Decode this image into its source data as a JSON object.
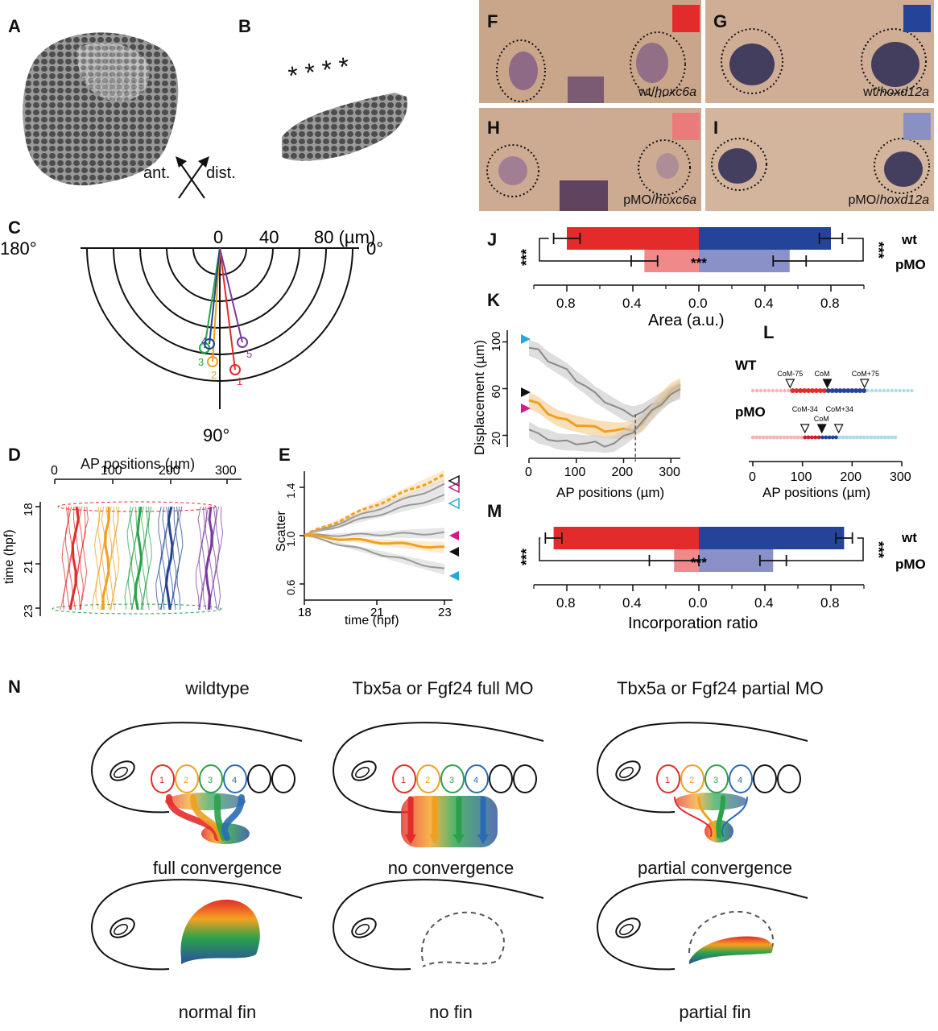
{
  "panel_labels": {
    "A": "A",
    "B": "B",
    "C": "C",
    "D": "D",
    "E": "E",
    "F": "F",
    "G": "G",
    "H": "H",
    "I": "I",
    "J": "J",
    "K": "K",
    "L": "L",
    "M": "M",
    "N": "N"
  },
  "panel_a": {
    "ant": "ant.",
    "dist": "dist."
  },
  "panel_b": {
    "asterisks": "* * * *"
  },
  "panel_c": {
    "deg_left": "180°",
    "deg_right": "0°",
    "deg_bottom": "90°",
    "scale_ticks": [
      "0",
      "40",
      "80 (µm)"
    ],
    "cell_labels": [
      "1",
      "2",
      "3",
      "4",
      "5"
    ],
    "cell_colors": [
      "#e32b2b",
      "#f0a020",
      "#2aa14a",
      "#24448f",
      "#7a3b9c"
    ]
  },
  "panel_d": {
    "xlabel": "AP positions (µm)",
    "xticks": [
      "0",
      "100",
      "200",
      "300"
    ],
    "ylabel": "time (hpf)",
    "yticks": [
      "18",
      "21",
      "23"
    ],
    "track_colors": [
      "#e32b2b",
      "#f0a020",
      "#2aa14a",
      "#24448f",
      "#7a3b9c"
    ]
  },
  "panel_e": {
    "ylabel": "Scatter",
    "yticks": [
      "0.6",
      "1.0",
      "1.4"
    ],
    "xlabel": "time (hpf)",
    "xticks": [
      "18",
      "21",
      "23"
    ]
  },
  "panels_fi": {
    "F": {
      "caption": "wt/",
      "gene": "hoxc6a",
      "swatch": "#e32b2b"
    },
    "G": {
      "caption": "wt/",
      "gene": "hoxd12a",
      "swatch": "#24449a"
    },
    "H": {
      "caption": "pMO/",
      "gene": "hoxc6a",
      "swatch": "#eb7a7a"
    },
    "I": {
      "caption": "pMO/",
      "gene": "hoxd12a",
      "swatch": "#8a90c2"
    }
  },
  "chart_data": [
    {
      "panel": "J",
      "type": "bar",
      "orientation": "horizontal",
      "xlabel": "Area (a.u.)",
      "xticks": [
        "0.8",
        "0.4",
        "0.0",
        "0.4",
        "0.8"
      ],
      "categories": [
        "wt",
        "pMO"
      ],
      "series": [
        {
          "values": [
            0.8,
            0.33
          ],
          "errors": [
            0.08,
            0.08
          ]
        },
        {
          "values": [
            0.8,
            0.55
          ],
          "errors": [
            0.07,
            0.1
          ]
        }
      ],
      "significance": "***"
    },
    {
      "panel": "K",
      "type": "line",
      "xlabel": "AP positions (µm)",
      "ylabel": "Displacement (µm)",
      "xticks": [
        "0",
        "100",
        "200",
        "300"
      ],
      "yticks": [
        "20",
        "60",
        "100"
      ],
      "xlim": [
        0,
        320
      ],
      "ylim": [
        10,
        110
      ],
      "series": [
        {
          "x": [
            0,
            20,
            40,
            60,
            80,
            100,
            120,
            140,
            160,
            180,
            200,
            220,
            240,
            260,
            280,
            300,
            320
          ],
          "y": [
            95,
            92,
            85,
            80,
            75,
            68,
            62,
            55,
            50,
            45,
            40,
            38,
            40,
            45,
            50,
            55,
            60
          ]
        },
        {
          "x": [
            0,
            20,
            40,
            60,
            80,
            100,
            120,
            140,
            160,
            180,
            200,
            220,
            240,
            260,
            280,
            300,
            320
          ],
          "y": [
            50,
            46,
            40,
            35,
            32,
            30,
            28,
            26,
            25,
            24,
            24,
            26,
            30,
            40,
            50,
            58,
            62
          ]
        },
        {
          "x": [
            0,
            20,
            40,
            60,
            80,
            100,
            120,
            140,
            160,
            180,
            200,
            220,
            240,
            260,
            280,
            300,
            320
          ],
          "y": [
            25,
            20,
            18,
            15,
            14,
            14,
            13,
            13,
            12,
            13,
            18,
            24,
            32,
            40,
            48,
            55,
            58
          ]
        }
      ],
      "dashed_x": 225
    },
    {
      "panel": "L",
      "type": "scatter",
      "xlabel": "AP positions (µm)",
      "xticks": [
        "0",
        "100",
        "200",
        "300"
      ],
      "rows": [
        {
          "name": "WT",
          "markers": [
            "CoM-75",
            "CoM",
            "CoM+75"
          ],
          "marker_x": [
            75,
            150,
            225
          ]
        },
        {
          "name": "pMO",
          "markers": [
            "CoM-34",
            "CoM",
            "CoM+34"
          ],
          "marker_x": [
            105,
            139,
            173
          ]
        }
      ]
    },
    {
      "panel": "M",
      "type": "bar",
      "orientation": "horizontal",
      "xlabel": "Incorporation ratio",
      "xticks": [
        "0.8",
        "0.4",
        "0.0",
        "0.4",
        "0.8"
      ],
      "categories": [
        "wt",
        "pMO"
      ],
      "series": [
        {
          "values": [
            0.88,
            0.15
          ],
          "errors": [
            0.05,
            0.15
          ]
        },
        {
          "values": [
            0.88,
            0.45
          ],
          "errors": [
            0.05,
            0.08
          ]
        }
      ],
      "significance": "***"
    }
  ],
  "panel_j": {
    "xlabel": "Area (a.u.)",
    "xticks": [
      "0.8",
      "0.4",
      "0.0",
      "0.4",
      "0.8"
    ],
    "rows": [
      "wt",
      "pMO"
    ],
    "sig": "***"
  },
  "panel_k": {
    "xlabel": "AP positions (µm)",
    "ylabel": "Displacement (µm)",
    "xticks": [
      "0",
      "100",
      "200",
      "300"
    ],
    "yticks": [
      "20",
      "60",
      "100"
    ]
  },
  "panel_l": {
    "xlabel": "AP positions (µm)",
    "xticks": [
      "0",
      "100",
      "200",
      "300"
    ],
    "row_wt": "WT",
    "row_pmo": "pMO",
    "wt_markers": [
      "CoM-75",
      "CoM",
      "CoM+75"
    ],
    "pmo_markers": [
      "CoM-34",
      "CoM",
      "CoM+34"
    ]
  },
  "panel_m": {
    "xlabel": "Incorporation ratio",
    "xticks": [
      "0.8",
      "0.4",
      "0.0",
      "0.4",
      "0.8"
    ],
    "rows": [
      "wt",
      "pMO"
    ],
    "sig": "***"
  },
  "panel_n": {
    "columns": [
      {
        "title": "wildtype",
        "process": "full convergence",
        "outcome": "normal fin"
      },
      {
        "title": "Tbx5a or Fgf24 full MO",
        "process": "no convergence",
        "outcome": "no fin"
      },
      {
        "title": "Tbx5a or Fgf24 partial MO",
        "process": "partial convergence",
        "outcome": "partial fin"
      }
    ],
    "cell_numbers": [
      "1",
      "2",
      "3",
      "4"
    ]
  }
}
